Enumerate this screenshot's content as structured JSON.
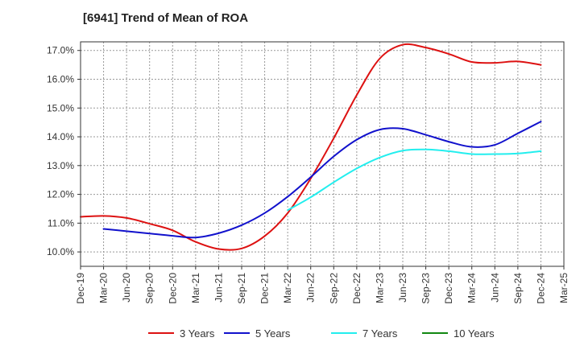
{
  "chart_data": {
    "type": "line",
    "title": "[6941]  Trend of Mean of ROA",
    "xlabel": "",
    "ylabel": "",
    "x": [
      "Dec-19",
      "Mar-20",
      "Jun-20",
      "Sep-20",
      "Dec-20",
      "Mar-21",
      "Jun-21",
      "Sep-21",
      "Dec-21",
      "Mar-22",
      "Jun-22",
      "Sep-22",
      "Dec-22",
      "Mar-23",
      "Jun-23",
      "Sep-23",
      "Dec-23",
      "Mar-24",
      "Jun-24",
      "Sep-24",
      "Dec-24",
      "Mar-25"
    ],
    "ylim": [
      9.5,
      17.3
    ],
    "y_ticks": [
      10.0,
      11.0,
      12.0,
      13.0,
      14.0,
      15.0,
      16.0,
      17.0
    ],
    "y_tick_labels": [
      "10.0%",
      "11.0%",
      "12.0%",
      "13.0%",
      "14.0%",
      "15.0%",
      "16.0%",
      "17.0%"
    ],
    "grid": true,
    "legend_position": "bottom",
    "series": [
      {
        "name": "3 Years",
        "color": "#dd1111",
        "values": [
          11.22,
          11.25,
          11.18,
          10.98,
          10.75,
          10.35,
          10.1,
          10.12,
          10.55,
          11.35,
          12.55,
          13.95,
          15.45,
          16.72,
          17.2,
          17.1,
          16.88,
          16.6,
          16.57,
          16.62,
          16.5,
          null
        ]
      },
      {
        "name": "5 Years",
        "color": "#1111cc",
        "values": [
          null,
          10.8,
          10.72,
          10.64,
          10.56,
          10.5,
          10.65,
          10.93,
          11.35,
          11.92,
          12.6,
          13.32,
          13.9,
          14.25,
          14.28,
          14.07,
          13.83,
          13.65,
          13.72,
          14.12,
          14.53,
          null
        ]
      },
      {
        "name": "7 Years",
        "color": "#22eeee",
        "values": [
          null,
          null,
          null,
          null,
          null,
          null,
          null,
          null,
          null,
          11.45,
          11.9,
          12.42,
          12.9,
          13.28,
          13.52,
          13.56,
          13.5,
          13.4,
          13.4,
          13.42,
          13.5,
          null
        ]
      },
      {
        "name": "10 Years",
        "color": "#118811",
        "values": [
          null,
          null,
          null,
          null,
          null,
          null,
          null,
          null,
          null,
          null,
          null,
          null,
          null,
          null,
          null,
          null,
          null,
          null,
          null,
          null,
          null,
          null
        ]
      }
    ]
  }
}
